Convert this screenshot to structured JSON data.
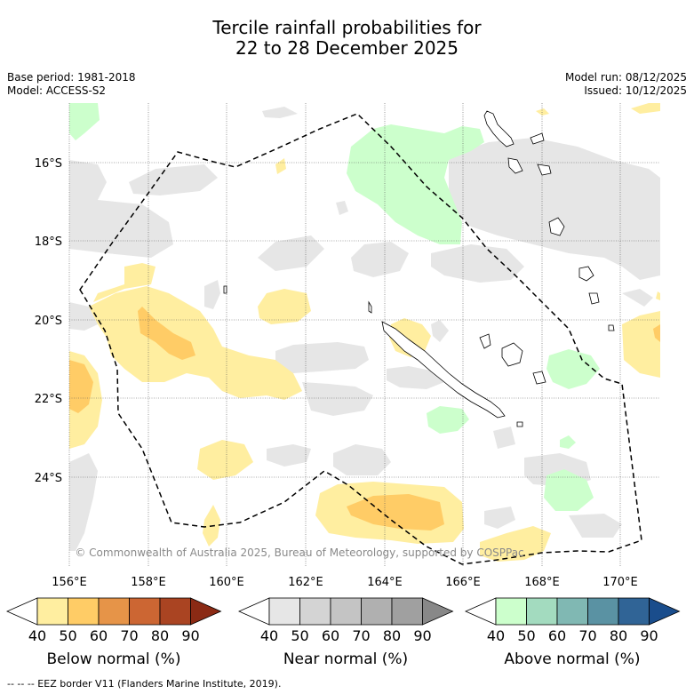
{
  "title_line1": "Tercile rainfall probabilities for",
  "title_line2": "22 to 28 December 2025",
  "meta": {
    "base_period": "Base period: 1981-2018",
    "model": "Model: ACCESS-S2",
    "model_run": "Model run: 08/12/2025",
    "issued": "Issued: 10/12/2025"
  },
  "map": {
    "lat_labels": [
      "16°S",
      "18°S",
      "20°S",
      "22°S",
      "24°S"
    ],
    "lon_labels": [
      "156°E",
      "158°E",
      "160°E",
      "162°E",
      "164°E",
      "166°E",
      "168°E",
      "170°E"
    ],
    "grid": "dotted",
    "copyright": "© Commonwealth of Australia 2025, Bureau of Meteorology, supported by COSPPac"
  },
  "legend": {
    "ticks": [
      "40",
      "50",
      "60",
      "70",
      "80",
      "90"
    ],
    "below": {
      "label": "Below normal (%)",
      "colors": [
        "#ffffff",
        "#ffeea0",
        "#ffcc66",
        "#e69448",
        "#cc6633",
        "#aa4422",
        "#8b2a14"
      ]
    },
    "near": {
      "label": "Near normal (%)",
      "colors": [
        "#ffffff",
        "#e6e6e6",
        "#d4d4d4",
        "#c4c4c4",
        "#b0b0b0",
        "#a0a0a0",
        "#888888"
      ]
    },
    "above": {
      "label": "Above normal (%)",
      "colors": [
        "#ffffff",
        "#ccffcc",
        "#a3dbbf",
        "#80b8b3",
        "#5a92a3",
        "#306496",
        "#1a4d8c"
      ]
    }
  },
  "footer": "--  --  -- EEZ border V11 (Flanders Marine Institute, 2019)."
}
